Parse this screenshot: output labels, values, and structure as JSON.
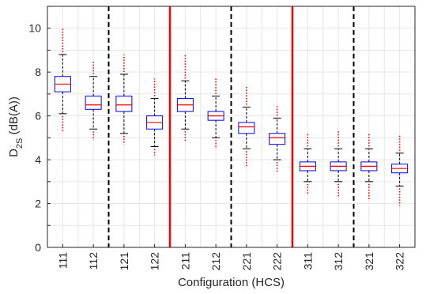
{
  "chart_data": {
    "type": "boxplot",
    "xlabel": "Configuration (HCS)",
    "ylabel_main": "D",
    "ylabel_sub": "2S",
    "ylabel_rest": " (dB(A))",
    "ylim": [
      0,
      11
    ],
    "yticks": [
      "0",
      "2",
      "4",
      "6",
      "8",
      "10"
    ],
    "grid": true,
    "categories": [
      "111",
      "112",
      "121",
      "122",
      "211",
      "212",
      "221",
      "222",
      "311",
      "312",
      "321",
      "322"
    ],
    "boxes": [
      {
        "q1": 7.1,
        "median": 7.45,
        "q3": 7.8,
        "whisker_low": 6.1,
        "whisker_high": 8.8,
        "outlier_low": 5.3,
        "outlier_high": 10.0
      },
      {
        "q1": 6.3,
        "median": 6.5,
        "q3": 6.9,
        "whisker_low": 5.4,
        "whisker_high": 7.8,
        "outlier_low": 4.9,
        "outlier_high": 8.5
      },
      {
        "q1": 6.2,
        "median": 6.5,
        "q3": 6.9,
        "whisker_low": 5.2,
        "whisker_high": 7.9,
        "outlier_low": 4.7,
        "outlier_high": 8.8
      },
      {
        "q1": 5.4,
        "median": 5.7,
        "q3": 6.0,
        "whisker_low": 4.6,
        "whisker_high": 6.8,
        "outlier_low": 4.2,
        "outlier_high": 7.7
      },
      {
        "q1": 6.2,
        "median": 6.5,
        "q3": 6.8,
        "whisker_low": 5.4,
        "whisker_high": 7.6,
        "outlier_low": 4.8,
        "outlier_high": 8.8
      },
      {
        "q1": 5.8,
        "median": 6.0,
        "q3": 6.2,
        "whisker_low": 5.0,
        "whisker_high": 6.9,
        "outlier_low": 4.5,
        "outlier_high": 7.7
      },
      {
        "q1": 5.2,
        "median": 5.5,
        "q3": 5.7,
        "whisker_low": 4.5,
        "whisker_high": 6.4,
        "outlier_low": 3.7,
        "outlier_high": 7.4
      },
      {
        "q1": 4.7,
        "median": 5.0,
        "q3": 5.2,
        "whisker_low": 4.0,
        "whisker_high": 5.9,
        "outlier_low": 3.4,
        "outlier_high": 6.5
      },
      {
        "q1": 3.5,
        "median": 3.7,
        "q3": 3.9,
        "whisker_low": 3.0,
        "whisker_high": 4.5,
        "outlier_low": 2.4,
        "outlier_high": 5.2
      },
      {
        "q1": 3.5,
        "median": 3.7,
        "q3": 3.9,
        "whisker_low": 3.0,
        "whisker_high": 4.5,
        "outlier_low": 2.3,
        "outlier_high": 5.3
      },
      {
        "q1": 3.5,
        "median": 3.7,
        "q3": 3.9,
        "whisker_low": 3.0,
        "whisker_high": 4.5,
        "outlier_low": 2.2,
        "outlier_high": 5.2
      },
      {
        "q1": 3.4,
        "median": 3.6,
        "q3": 3.8,
        "whisker_low": 2.8,
        "whisker_high": 4.3,
        "outlier_low": 1.9,
        "outlier_high": 5.1
      }
    ],
    "separators": [
      {
        "after_index": 1,
        "style": "dashed",
        "color": "#000000"
      },
      {
        "after_index": 3,
        "style": "solid",
        "color": "#ff0000"
      },
      {
        "after_index": 5,
        "style": "dashed",
        "color": "#000000"
      },
      {
        "after_index": 7,
        "style": "solid",
        "color": "#ff0000"
      },
      {
        "after_index": 9,
        "style": "dashed",
        "color": "#000000"
      }
    ],
    "colors": {
      "box": "#0000ff",
      "median": "#ff0000",
      "whisker": "#000000",
      "outlier": "#ff0000",
      "grid": "#e6e6e6",
      "axis": "#262626"
    }
  }
}
